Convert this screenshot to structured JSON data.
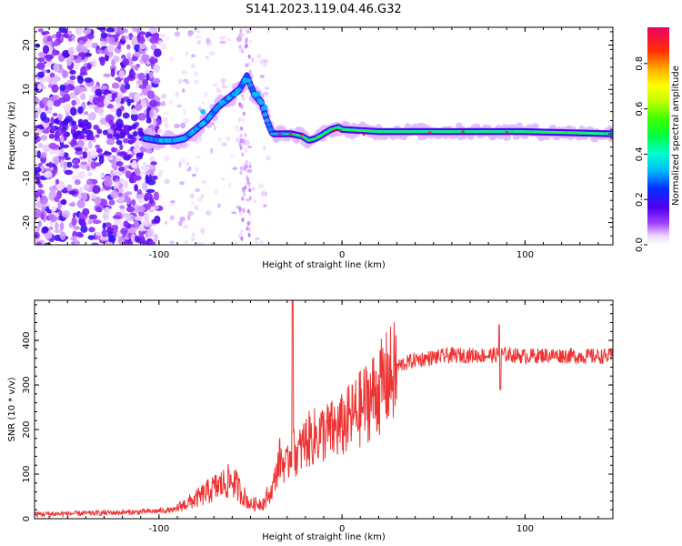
{
  "title": "S141.2023.119.04.46.G32",
  "chart_data": [
    {
      "type": "heatmap",
      "xlabel": "Height of straight line (km)",
      "ylabel": "Frequency (Hz)",
      "xlim": [
        -168,
        148
      ],
      "ylim": [
        -25,
        24
      ],
      "xticks": [
        -100,
        0,
        100
      ],
      "yticks": [
        -20,
        -10,
        0,
        10,
        20
      ],
      "colorbar": {
        "label": "Normalized spectral amplitude",
        "range": [
          0,
          0.96
        ],
        "ticks": [
          0.0,
          0.2,
          0.4,
          0.6,
          0.8
        ],
        "tick_labels": [
          "0.0",
          "0.2",
          "0.4",
          "0.6",
          "0.8"
        ]
      },
      "dominant_frequency_track": {
        "x": [
          -107,
          -100,
          -92,
          -86,
          -80,
          -74,
          -68,
          -62,
          -56,
          -52,
          -48,
          -44,
          -41,
          -38,
          -34,
          -28,
          -22,
          -18,
          -14,
          -10,
          -6,
          -2,
          0,
          20,
          60,
          100,
          148
        ],
        "y": [
          -1,
          -1.5,
          -1.5,
          -1,
          1,
          3,
          6,
          8,
          10,
          13,
          9,
          7,
          3,
          0,
          0,
          0,
          -0.5,
          -1.5,
          -1,
          0,
          1,
          1.5,
          1,
          0.5,
          0.5,
          0.5,
          0
        ]
      }
    },
    {
      "type": "line",
      "xlabel": "Height of straight line (km)",
      "ylabel": "SNR (10 * v/v)",
      "xlim": [
        -168,
        148
      ],
      "ylim": [
        0,
        490
      ],
      "xticks": [
        -100,
        0,
        100
      ],
      "yticks": [
        0,
        100,
        200,
        300,
        400
      ],
      "series": [
        {
          "color": "#ee3333",
          "x": [
            -168,
            -140,
            -110,
            -90,
            -80,
            -70,
            -60,
            -50,
            -42,
            -38,
            -34,
            -30,
            -28,
            -24,
            -20,
            -15,
            -10,
            -5,
            0,
            5,
            10,
            15,
            20,
            25,
            30,
            40,
            50,
            60,
            70,
            80,
            90,
            100,
            110,
            120,
            130,
            148
          ],
          "y": [
            10,
            12,
            15,
            20,
            35,
            55,
            70,
            25,
            30,
            70,
            140,
            120,
            160,
            150,
            180,
            190,
            200,
            205,
            215,
            235,
            255,
            280,
            300,
            325,
            345,
            360,
            365,
            370,
            370,
            370,
            372,
            368,
            370,
            370,
            368,
            368
          ]
        }
      ]
    }
  ]
}
